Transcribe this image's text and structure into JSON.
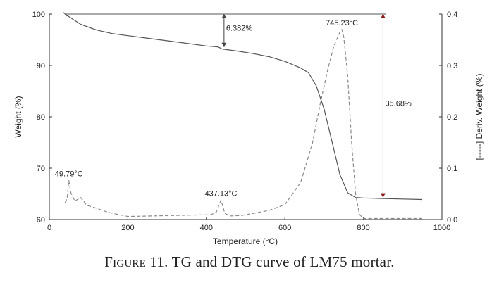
{
  "caption": {
    "label": "Figure 11.",
    "text": "TG and DTG curve of LM75 mortar."
  },
  "chart_data": {
    "type": "line",
    "title": "",
    "xlabel": "Temperature (°C)",
    "ylabel": "Weight (%)",
    "y2label": "[-----] Deriv. Weight (%)",
    "xlim": [
      0,
      1000
    ],
    "ylim": [
      60,
      100
    ],
    "y2lim": [
      0.0,
      0.4
    ],
    "xticks": [
      "0",
      "200",
      "400",
      "600",
      "800",
      "1000"
    ],
    "yticks": [
      "60",
      "70",
      "80",
      "90",
      "100"
    ],
    "y2ticks": [
      "0.0",
      "0.1",
      "0.2",
      "0.3",
      "0.4"
    ],
    "grid": false,
    "series": [
      {
        "name": "TG",
        "axis": "left",
        "style": "solid",
        "x": [
          40,
          80,
          120,
          160,
          200,
          260,
          320,
          400,
          430,
          440,
          480,
          520,
          560,
          600,
          640,
          660,
          680,
          700,
          720,
          740,
          760,
          780,
          800,
          850,
          900,
          950
        ],
        "y": [
          100.0,
          98.0,
          96.9,
          96.2,
          95.8,
          95.2,
          94.6,
          93.8,
          93.6,
          93.2,
          92.8,
          92.3,
          91.7,
          90.8,
          89.5,
          88.6,
          86.0,
          81.5,
          75.2,
          68.8,
          65.2,
          64.3,
          64.2,
          64.1,
          64.0,
          63.9
        ]
      },
      {
        "name": "DTG",
        "axis": "right",
        "style": "dashed",
        "x": [
          40,
          45,
          49.79,
          55,
          65,
          80,
          95,
          120,
          150,
          200,
          260,
          320,
          380,
          410,
          425,
          437.13,
          447,
          460,
          490,
          520,
          560,
          600,
          640,
          670,
          690,
          710,
          725,
          740,
          745.23,
          750,
          760,
          770,
          780,
          790,
          800,
          850,
          900,
          950
        ],
        "y": [
          0.033,
          0.04,
          0.076,
          0.052,
          0.036,
          0.043,
          0.028,
          0.022,
          0.014,
          0.006,
          0.007,
          0.008,
          0.009,
          0.009,
          0.014,
          0.038,
          0.012,
          0.007,
          0.008,
          0.012,
          0.018,
          0.029,
          0.072,
          0.148,
          0.225,
          0.295,
          0.338,
          0.365,
          0.37,
          0.355,
          0.28,
          0.15,
          0.05,
          0.01,
          0.002,
          0.002,
          0.002,
          0.002
        ]
      }
    ],
    "annotations": [
      {
        "text": "49.79°C",
        "x": 49.79,
        "y": 0.076,
        "axis": "right"
      },
      {
        "text": "437.13°C",
        "x": 437.13,
        "y": 0.038,
        "axis": "right"
      },
      {
        "text": "745.23°C",
        "x": 745.23,
        "y": 0.37,
        "axis": "right"
      },
      {
        "text": "6.382%",
        "x": 445,
        "y1": 100.0,
        "y2": 93.6,
        "axis": "left"
      },
      {
        "text": "35.68%",
        "x": 850,
        "y1": 100.0,
        "y2": 64.3,
        "axis": "left"
      }
    ],
    "colors": {
      "tg": "#555555",
      "dtg": "#8a8a8a",
      "arrow_small": "#444444",
      "arrow_large": "#8b1a1a"
    }
  }
}
